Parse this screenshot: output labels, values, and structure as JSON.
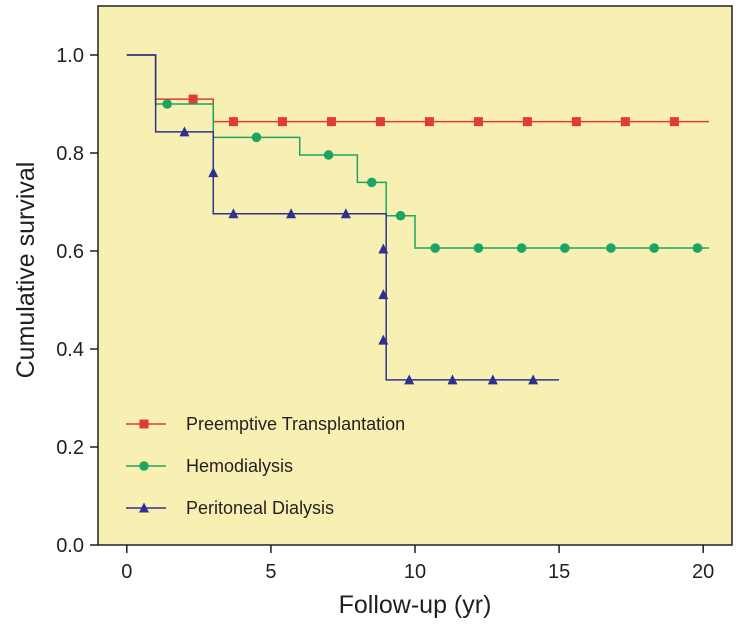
{
  "chart_data": {
    "type": "line",
    "step": true,
    "title": "",
    "xlabel": "Follow-up (yr)",
    "ylabel": "Cumulative survival",
    "xlim": [
      -1,
      21
    ],
    "ylim": [
      0,
      1.1
    ],
    "xticks": [
      0,
      5,
      10,
      15,
      20
    ],
    "xtick_labels": [
      "0",
      "5",
      "10",
      "15",
      "20"
    ],
    "yticks": [
      0,
      0.2,
      0.4,
      0.6,
      0.8,
      1.0
    ],
    "ytick_labels": [
      "0.0",
      "0.2",
      "0.4",
      "0.6",
      "0.8",
      "1.0"
    ],
    "background": "#f8f0b2",
    "grid": false,
    "legend_position": "bottom-left",
    "series": [
      {
        "name": "Preemptive Transplantation",
        "color": "#e03c31",
        "marker": "square",
        "line": [
          [
            0,
            1.0
          ],
          [
            1,
            1.0
          ],
          [
            1,
            0.91
          ],
          [
            3,
            0.91
          ],
          [
            3,
            0.864
          ],
          [
            20.2,
            0.864
          ]
        ],
        "markers": [
          [
            2.3,
            0.91
          ],
          [
            3.7,
            0.864
          ],
          [
            5.4,
            0.864
          ],
          [
            7.1,
            0.864
          ],
          [
            8.8,
            0.864
          ],
          [
            10.5,
            0.864
          ],
          [
            12.2,
            0.864
          ],
          [
            13.9,
            0.864
          ],
          [
            15.6,
            0.864
          ],
          [
            17.3,
            0.864
          ],
          [
            19.0,
            0.864
          ]
        ]
      },
      {
        "name": "Hemodialysis",
        "color": "#1da462",
        "marker": "circle",
        "line": [
          [
            0,
            1.0
          ],
          [
            1,
            1.0
          ],
          [
            1,
            0.9
          ],
          [
            3,
            0.9
          ],
          [
            3,
            0.832
          ],
          [
            6,
            0.832
          ],
          [
            6,
            0.796
          ],
          [
            8,
            0.796
          ],
          [
            8,
            0.74
          ],
          [
            9,
            0.74
          ],
          [
            9,
            0.672
          ],
          [
            10,
            0.672
          ],
          [
            10,
            0.606
          ],
          [
            20.2,
            0.606
          ]
        ],
        "markers": [
          [
            1.4,
            0.9
          ],
          [
            4.5,
            0.832
          ],
          [
            7.0,
            0.796
          ],
          [
            8.5,
            0.74
          ],
          [
            9.5,
            0.672
          ],
          [
            10.7,
            0.606
          ],
          [
            12.2,
            0.606
          ],
          [
            13.7,
            0.606
          ],
          [
            15.2,
            0.606
          ],
          [
            16.8,
            0.606
          ],
          [
            18.3,
            0.606
          ],
          [
            19.8,
            0.606
          ]
        ]
      },
      {
        "name": "Peritoneal Dialysis",
        "color": "#2e3192",
        "marker": "triangle",
        "line": [
          [
            0,
            1.0
          ],
          [
            1,
            1.0
          ],
          [
            1,
            0.843
          ],
          [
            3,
            0.843
          ],
          [
            3,
            0.676
          ],
          [
            9,
            0.676
          ],
          [
            9,
            0.337
          ],
          [
            15,
            0.337
          ]
        ],
        "markers": [
          [
            2.0,
            0.843
          ],
          [
            3.0,
            0.76
          ],
          [
            3.7,
            0.676
          ],
          [
            5.7,
            0.676
          ],
          [
            7.6,
            0.676
          ],
          [
            8.9,
            0.604
          ],
          [
            8.9,
            0.511
          ],
          [
            8.9,
            0.418
          ],
          [
            9.8,
            0.337
          ],
          [
            11.3,
            0.337
          ],
          [
            12.7,
            0.337
          ],
          [
            14.1,
            0.337
          ]
        ]
      }
    ]
  }
}
